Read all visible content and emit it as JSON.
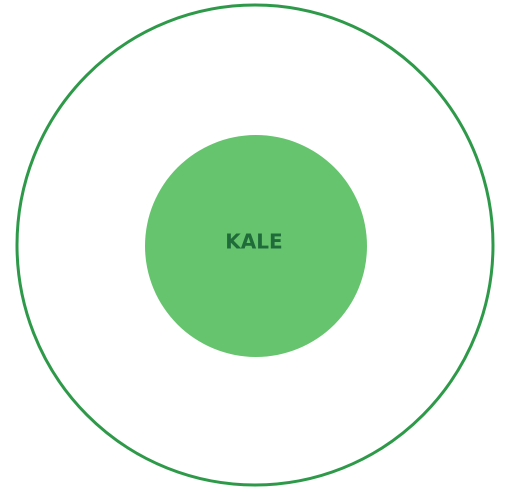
{
  "label": "KALE"
}
